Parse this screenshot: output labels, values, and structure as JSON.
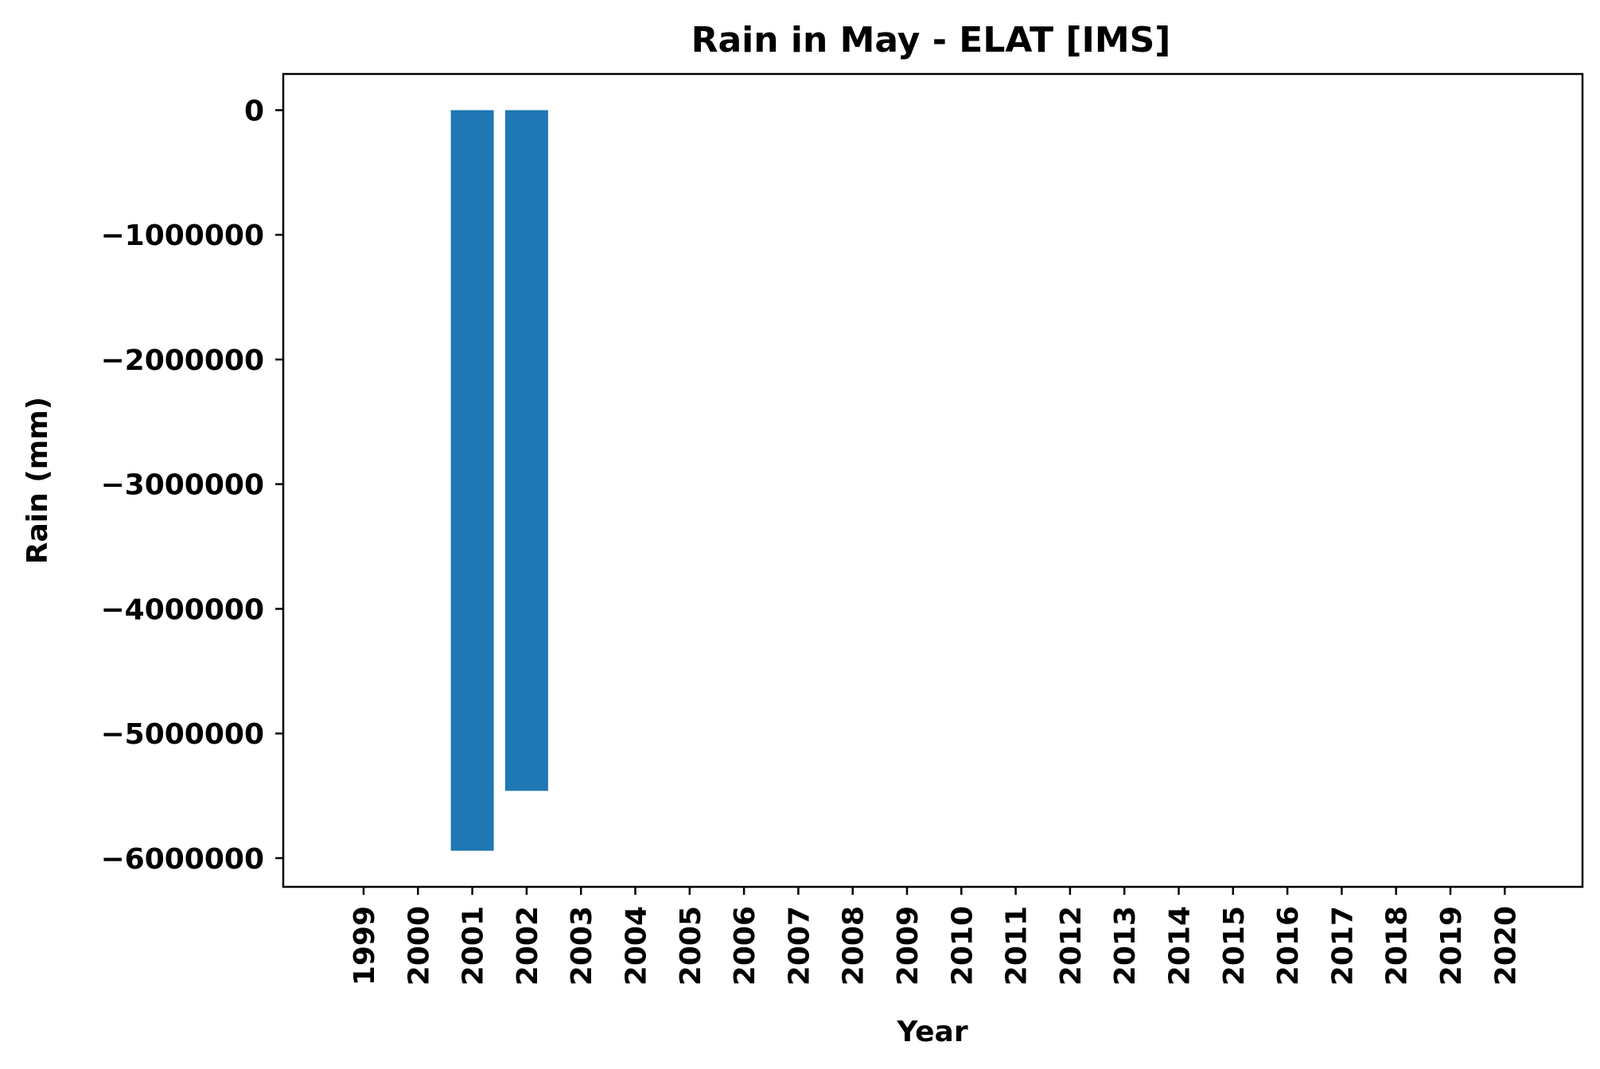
{
  "chart_data": {
    "type": "bar",
    "title": "Rain in May - ELAT [IMS]",
    "xlabel": "Year",
    "ylabel": "Rain (mm)",
    "categories": [
      "1999",
      "2000",
      "2001",
      "2002",
      "2003",
      "2004",
      "2005",
      "2006",
      "2007",
      "2008",
      "2009",
      "2010",
      "2011",
      "2012",
      "2013",
      "2014",
      "2015",
      "2016",
      "2017",
      "2018",
      "2019",
      "2020"
    ],
    "values": [
      0,
      0,
      -5940000,
      -5460000,
      0,
      0,
      0,
      0,
      0,
      0,
      0,
      0,
      0,
      0,
      0,
      0,
      0,
      0,
      0,
      0,
      0,
      0
    ],
    "ylim": [
      -6230000,
      290000
    ],
    "yticks": [
      0,
      -1000000,
      -2000000,
      -3000000,
      -4000000,
      -5000000,
      -6000000
    ],
    "ytick_labels": [
      "0",
      "−1000000",
      "−2000000",
      "−3000000",
      "−4000000",
      "−5000000",
      "−6000000"
    ],
    "bar_color": "#1f77b4",
    "grid": false,
    "legend": "none"
  }
}
